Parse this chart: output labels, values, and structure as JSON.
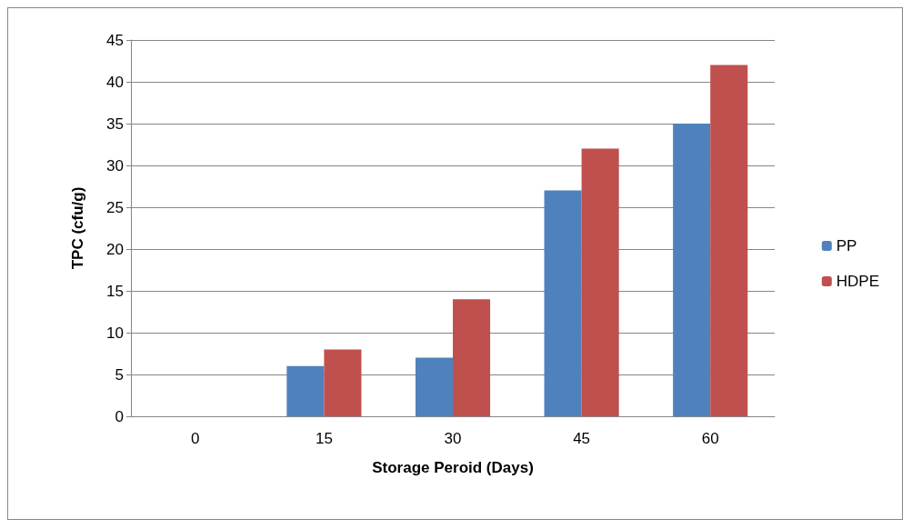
{
  "chart_data": {
    "type": "bar",
    "xlabel": "Storage Peroid (Days)",
    "ylabel": "TPC (cfu/g)",
    "categories": [
      "0",
      "15",
      "30",
      "45",
      "60"
    ],
    "series": [
      {
        "name": "PP",
        "color": "#4f81bd",
        "values": [
          0,
          6,
          7,
          27,
          35
        ]
      },
      {
        "name": "HDPE",
        "color": "#c0504d",
        "values": [
          0,
          8,
          14,
          32,
          42
        ]
      }
    ],
    "ylim": [
      0,
      45
    ],
    "yticks": [
      0,
      5,
      10,
      15,
      20,
      25,
      30,
      35,
      40,
      45
    ],
    "grid": "y",
    "legend": "right"
  }
}
